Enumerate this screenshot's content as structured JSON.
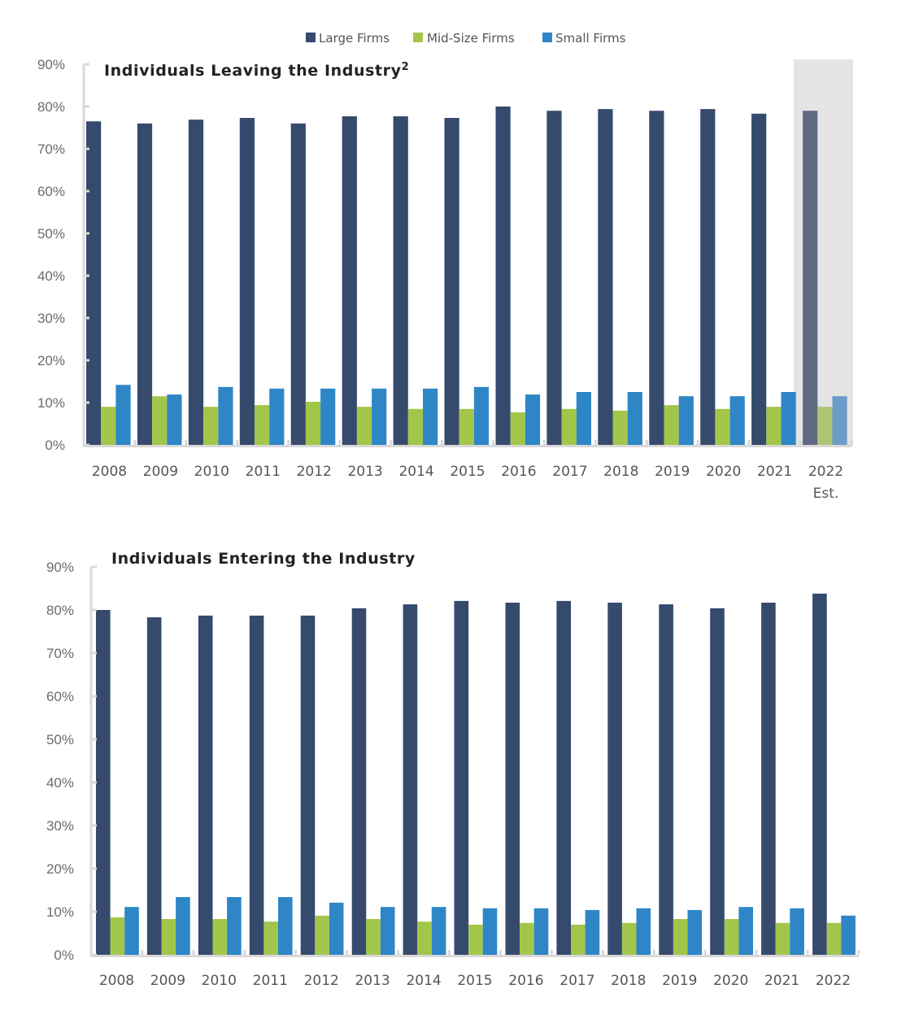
{
  "legend": [
    {
      "name": "Large Firms",
      "color": "#364a6e"
    },
    {
      "name": "Mid-Size Firms",
      "color": "#a2c64a"
    },
    {
      "name": "Small Firms",
      "color": "#2e86c6"
    }
  ],
  "chart_data": [
    {
      "type": "bar",
      "title": "Individuals Leaving the Industry",
      "title_superscript": "2",
      "categories": [
        "2008",
        "2009",
        "2010",
        "2011",
        "2012",
        "2013",
        "2014",
        "2015",
        "2016",
        "2017",
        "2018",
        "2019",
        "2020",
        "2021",
        "2022"
      ],
      "category_sublabels": {
        "2022": "Est."
      },
      "highlighted_categories": [
        "2022"
      ],
      "highlight_note": "2022 Est. shaded (estimate)",
      "highlight_colors": {
        "background": "#e4e4e4",
        "Large Firms": "#5e6a84",
        "Mid-Size Firms": "#aec472",
        "Small Firms": "#6b9bc9"
      },
      "series": [
        {
          "name": "Large Firms",
          "values": [
            76.5,
            76.0,
            76.9,
            77.3,
            76.0,
            77.7,
            77.7,
            77.3,
            80.0,
            79.0,
            79.4,
            79.0,
            79.4,
            78.3,
            79.0
          ]
        },
        {
          "name": "Mid-Size Firms",
          "values": [
            9.0,
            11.5,
            9.0,
            9.4,
            10.2,
            9.0,
            8.5,
            8.5,
            7.7,
            8.5,
            8.1,
            9.4,
            8.5,
            9.0,
            9.0
          ]
        },
        {
          "name": "Small Firms",
          "values": [
            14.2,
            11.9,
            13.7,
            13.3,
            13.3,
            13.3,
            13.3,
            13.7,
            11.9,
            12.5,
            12.5,
            11.5,
            11.5,
            12.5,
            11.5
          ]
        }
      ],
      "yticks": [
        "0%",
        "10%",
        "20%",
        "30%",
        "40%",
        "50%",
        "60%",
        "70%",
        "80%",
        "90%"
      ],
      "ylim": [
        0,
        90
      ],
      "xlabel": "",
      "ylabel": "",
      "legend_position": "top-center",
      "grid": false
    },
    {
      "type": "bar",
      "title": "Individuals Entering the Industry",
      "title_superscript": "",
      "categories": [
        "2008",
        "2009",
        "2010",
        "2011",
        "2012",
        "2013",
        "2014",
        "2015",
        "2016",
        "2017",
        "2018",
        "2019",
        "2020",
        "2021",
        "2022"
      ],
      "category_sublabels": {},
      "highlighted_categories": [],
      "series": [
        {
          "name": "Large Firms",
          "values": [
            80.0,
            78.3,
            78.7,
            78.7,
            78.7,
            80.4,
            81.3,
            82.1,
            81.7,
            82.1,
            81.7,
            81.3,
            80.4,
            81.7,
            83.8
          ]
        },
        {
          "name": "Mid-Size Firms",
          "values": [
            8.7,
            8.3,
            8.3,
            7.7,
            9.1,
            8.3,
            7.7,
            7.0,
            7.4,
            7.0,
            7.4,
            8.3,
            8.3,
            7.4,
            7.4
          ]
        },
        {
          "name": "Small Firms",
          "values": [
            11.1,
            13.4,
            13.4,
            13.4,
            12.1,
            11.1,
            11.1,
            10.8,
            10.8,
            10.4,
            10.8,
            10.4,
            11.1,
            10.8,
            9.1
          ]
        }
      ],
      "yticks": [
        "0%",
        "10%",
        "20%",
        "30%",
        "40%",
        "50%",
        "60%",
        "70%",
        "80%",
        "90%"
      ],
      "ylim": [
        0,
        90
      ],
      "xlabel": "",
      "ylabel": "",
      "grid": false
    }
  ]
}
